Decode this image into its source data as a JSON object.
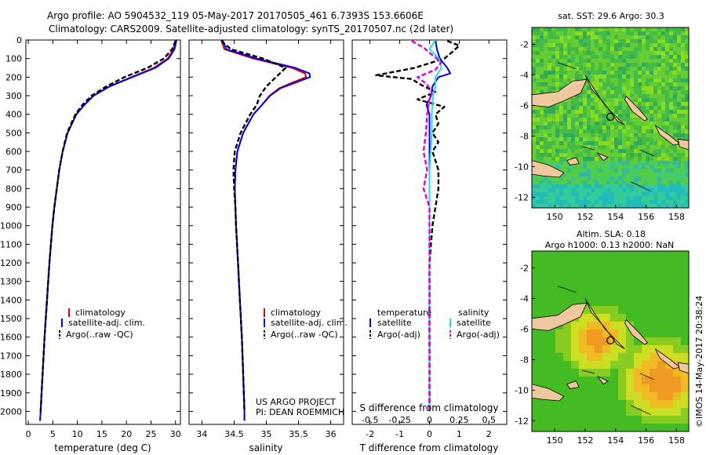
{
  "header": {
    "line1": "Argo profile: AO 5904532_119 05-May-2017 20170505_461 6.7393S 153.6606E",
    "line2": "Climatology: CARS2009. Satellite-adjusted climatology: synTS_20170507.nc (2d later)"
  },
  "watermark": "©IMOS 14-May-2017 20:38:24",
  "project": {
    "line1": "US ARGO PROJECT",
    "line2": "PI: DEAN ROEMMICH"
  },
  "colors": {
    "climatology": "#dd0000",
    "satellite": "#0000ee",
    "argo": "#000000",
    "sat_salinity": "#22dddd",
    "argo_salinity": "#dd00dd",
    "land": "#f0c8a0"
  },
  "chart_data": [
    {
      "type": "line",
      "name": "temperature-profile",
      "xlabel": "temperature (deg C)",
      "xlim": [
        -0.5,
        31
      ],
      "xticks": [
        "0",
        "5",
        "10",
        "15",
        "20",
        "25",
        "30"
      ],
      "xtick_values": [
        0,
        5,
        10,
        15,
        20,
        25,
        30
      ],
      "ylim": [
        2070,
        0
      ],
      "yticks": [
        "0",
        "100",
        "200",
        "300",
        "400",
        "500",
        "600",
        "700",
        "800",
        "900",
        "1000",
        "1100",
        "1200",
        "1300",
        "1400",
        "1500",
        "1600",
        "1700",
        "1800",
        "1900",
        "2000"
      ],
      "ytick_values": [
        0,
        100,
        200,
        300,
        400,
        500,
        600,
        700,
        800,
        900,
        1000,
        1100,
        1200,
        1300,
        1400,
        1500,
        1600,
        1700,
        1800,
        1900,
        2000
      ],
      "legend": [
        "climatology",
        "satellite-adj. clim.",
        "Argo(..raw -QC)"
      ],
      "series": [
        {
          "name": "climatology",
          "depth": [
            0,
            50,
            100,
            150,
            200,
            250,
            300,
            350,
            400,
            500,
            600,
            700,
            800,
            900,
            1000,
            1200,
            1400,
            1600,
            1800,
            2000,
            2050
          ],
          "values": [
            30.0,
            29.6,
            28.4,
            25.6,
            21.0,
            16.5,
            13.3,
            11.4,
            9.8,
            8.0,
            7.0,
            6.3,
            5.8,
            5.3,
            4.9,
            4.3,
            3.8,
            3.3,
            2.9,
            2.5,
            2.4
          ]
        },
        {
          "name": "satellite-adj. clim.",
          "depth": [
            0,
            50,
            100,
            150,
            200,
            250,
            300,
            350,
            400,
            500,
            600,
            700,
            800,
            900,
            1000,
            1200,
            1400,
            1600,
            1800,
            2000,
            2050
          ],
          "values": [
            30.2,
            29.8,
            28.6,
            25.9,
            21.2,
            16.6,
            13.3,
            11.4,
            9.8,
            8.0,
            7.0,
            6.3,
            5.8,
            5.3,
            4.9,
            4.3,
            3.8,
            3.3,
            2.9,
            2.5,
            2.4
          ]
        },
        {
          "name": "Argo(..raw -QC)",
          "depth": [
            5,
            50,
            100,
            150,
            200,
            250,
            300,
            350,
            400,
            500,
            600,
            700,
            800,
            900,
            1000,
            1200,
            1400,
            1600,
            1800,
            2000
          ],
          "values": [
            30.0,
            29.3,
            27.6,
            24.3,
            19.6,
            15.9,
            12.9,
            11.0,
            9.6,
            7.9,
            7.0,
            6.3,
            5.8,
            5.3,
            4.9,
            4.3,
            3.8,
            3.3,
            2.9,
            2.5
          ]
        }
      ]
    },
    {
      "type": "line",
      "name": "salinity-profile",
      "xlabel": "salinity",
      "xlim": [
        33.8,
        36.2
      ],
      "xticks": [
        "34",
        "34.5",
        "35",
        "35.5",
        "36"
      ],
      "xtick_values": [
        34,
        34.5,
        35,
        35.5,
        36
      ],
      "ylim": [
        2070,
        0
      ],
      "legend": [
        "climatology",
        "satellite-adj. clim.",
        "Argo(..raw -QC)"
      ],
      "series": [
        {
          "name": "climatology",
          "depth": [
            0,
            50,
            100,
            150,
            180,
            200,
            230,
            260,
            300,
            350,
            400,
            500,
            600,
            700,
            800,
            900,
            1000,
            1200,
            1400,
            1600,
            1800,
            2000,
            2050
          ],
          "values": [
            34.3,
            34.35,
            34.8,
            35.4,
            35.6,
            35.62,
            35.4,
            35.2,
            35.05,
            34.93,
            34.8,
            34.64,
            34.55,
            34.52,
            34.51,
            34.52,
            34.53,
            34.56,
            34.59,
            34.62,
            34.64,
            34.66,
            34.66
          ]
        },
        {
          "name": "satellite-adj. clim.",
          "depth": [
            0,
            50,
            100,
            150,
            180,
            200,
            230,
            260,
            300,
            350,
            400,
            500,
            600,
            700,
            800,
            900,
            1000,
            1200,
            1400,
            1600,
            1800,
            2000,
            2050
          ],
          "values": [
            34.32,
            34.38,
            34.85,
            35.45,
            35.67,
            35.68,
            35.45,
            35.22,
            35.06,
            34.93,
            34.8,
            34.64,
            34.55,
            34.52,
            34.51,
            34.52,
            34.53,
            34.56,
            34.59,
            34.62,
            34.64,
            34.66,
            34.66
          ]
        },
        {
          "name": "Argo(..raw -QC)",
          "depth": [
            5,
            50,
            100,
            150,
            200,
            250,
            300,
            350,
            400,
            500,
            600,
            700,
            800,
            900,
            1000,
            1200,
            1400,
            1600,
            1800,
            2000
          ],
          "values": [
            34.3,
            34.45,
            34.95,
            35.3,
            35.15,
            35.0,
            34.9,
            34.85,
            34.75,
            34.6,
            34.51,
            34.49,
            34.5,
            34.52,
            34.53,
            34.56,
            34.59,
            34.62,
            34.64,
            34.66
          ]
        }
      ]
    },
    {
      "type": "line",
      "name": "difference-profile",
      "xlabel": "T difference from climatology",
      "x2label": "S difference from climatology",
      "xlim": [
        -2.6,
        2.6
      ],
      "xticks": [
        "-2",
        "-1",
        "0",
        "1",
        "2"
      ],
      "xtick_values": [
        -2,
        -1,
        0,
        1,
        2
      ],
      "x2ticks": [
        "-0.5",
        "-0.25",
        "0",
        "0.25",
        "0.5"
      ],
      "x2tick_values": [
        -0.5,
        -0.25,
        0,
        0.25,
        0.5
      ],
      "ylim": [
        2070,
        0
      ],
      "legend_temperature": [
        "temperature",
        "satellite",
        "Argo(-adj)"
      ],
      "legend_salinity": [
        "salinity",
        "satellite",
        "Argo(-adj)"
      ],
      "series": [
        {
          "name": "T satellite",
          "depth": [
            0,
            50,
            100,
            150,
            180,
            200,
            250,
            300,
            350,
            400,
            500,
            700,
            1000,
            1500,
            2000
          ],
          "values": [
            0.2,
            0.25,
            0.35,
            0.6,
            0.7,
            0.3,
            0.1,
            0.05,
            -0.1,
            0.0,
            0.0,
            0.0,
            0.0,
            0.0,
            0.0
          ]
        },
        {
          "name": "T Argo(-adj)",
          "depth": [
            5,
            30,
            60,
            100,
            150,
            190,
            210,
            240,
            280,
            320,
            360,
            400,
            450,
            500,
            550,
            600,
            700,
            800,
            900,
            1000,
            1200,
            1500,
            2000
          ],
          "values": [
            0.6,
            1.0,
            0.8,
            0.5,
            -0.5,
            -1.8,
            -0.6,
            -0.3,
            0.2,
            -0.4,
            0.5,
            0.2,
            0.3,
            0.1,
            0.3,
            0.1,
            0.3,
            0.3,
            0.2,
            0.1,
            0.0,
            0.0,
            0.0
          ]
        },
        {
          "name": "S satellite",
          "depth": [
            0,
            50,
            100,
            150,
            200,
            250,
            300,
            400,
            500,
            700,
            1000,
            1500,
            2000
          ],
          "values": [
            0.05,
            0.0,
            0.08,
            0.1,
            0.05,
            0.05,
            0.03,
            0.02,
            0.02,
            0.0,
            0.0,
            0.0,
            0.0
          ]
        },
        {
          "name": "S Argo(-adj)",
          "depth": [
            5,
            40,
            80,
            120,
            160,
            200,
            240,
            280,
            320,
            400,
            500,
            600,
            700,
            800,
            900,
            1000,
            1200,
            1500,
            2000
          ],
          "values": [
            -0.15,
            -0.05,
            0.02,
            0.1,
            0.05,
            -0.1,
            -0.02,
            0.02,
            0.0,
            -0.02,
            -0.03,
            -0.05,
            -0.02,
            -0.05,
            0.0,
            0.0,
            0.0,
            0.0,
            0.0
          ]
        }
      ]
    },
    {
      "type": "heatmap",
      "name": "sst-map",
      "title": "sat. SST: 29.6  Argo: 30.3",
      "xlim": [
        148.5,
        158.8
      ],
      "ylim": [
        -12.7,
        -0.9
      ],
      "xticks": [
        "150",
        "152",
        "154",
        "156",
        "158"
      ],
      "xtick_values": [
        150,
        152,
        154,
        156,
        158
      ],
      "yticks": [
        "-2",
        "-4",
        "-6",
        "-8",
        "-10",
        "-12"
      ],
      "ytick_values": [
        -2,
        -4,
        -6,
        -8,
        -10,
        -12
      ],
      "float_position": [
        153.66,
        -6.74
      ]
    },
    {
      "type": "heatmap",
      "name": "sla-map",
      "title": "Altim. SLA: 0.18",
      "subtitle": "Argo h1000: 0.13 h2000: NaN",
      "xlim": [
        148.5,
        158.8
      ],
      "ylim": [
        -12.7,
        -0.9
      ],
      "xticks": [
        "150",
        "152",
        "154",
        "156",
        "158"
      ],
      "xtick_values": [
        150,
        152,
        154,
        156,
        158
      ],
      "yticks": [
        "-2",
        "-4",
        "-6",
        "-8",
        "-10",
        "-12"
      ],
      "ytick_values": [
        -2,
        -4,
        -6,
        -8,
        -10,
        -12
      ],
      "float_position": [
        153.66,
        -6.74
      ]
    }
  ]
}
